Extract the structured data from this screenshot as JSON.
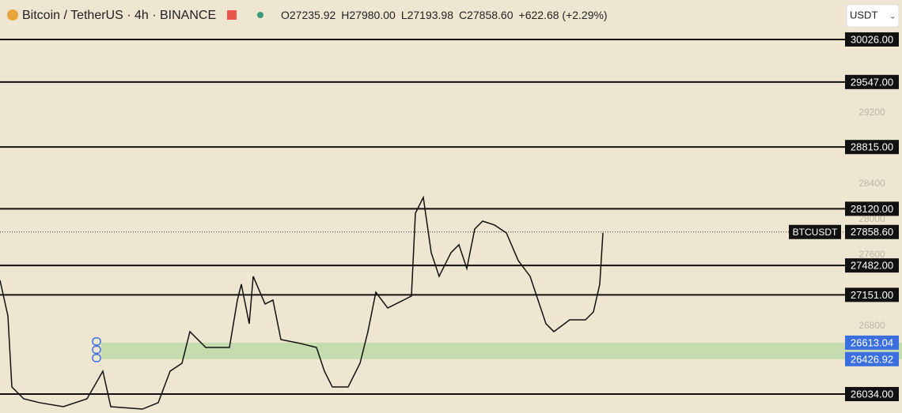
{
  "header": {
    "symbol": "Bitcoin / TetherUS · 4h · BINANCE",
    "ohlc": [
      "O27235.92",
      "H27980.00",
      "L27193.98",
      "C27858.60",
      "+622.68 (+2.29%)"
    ],
    "currency": "USDT"
  },
  "chart_data": {
    "type": "line",
    "x": [
      0,
      2,
      3,
      6,
      10,
      16,
      22,
      26,
      28,
      36,
      40,
      43,
      46,
      48,
      52,
      58,
      60,
      61,
      63,
      64,
      67,
      69,
      71,
      76,
      80,
      82,
      84,
      88,
      91,
      93,
      95,
      98,
      102,
      104,
      105,
      107,
      109,
      111,
      114,
      116,
      118,
      120,
      122,
      125,
      128,
      131,
      134,
      136,
      138,
      140,
      144,
      148,
      150,
      151.6,
      152.4
    ],
    "series": [
      {
        "name": "BTCUSDT",
        "color": "#111111",
        "values": [
          27315,
          26914,
          26114,
          25981,
          25937,
          25892,
          25981,
          26292,
          25892,
          25865,
          25937,
          26292,
          26381,
          26737,
          26559,
          26559,
          27092,
          27270,
          26826,
          27359,
          27048,
          27092,
          26648,
          26603,
          26559,
          26292,
          26114,
          26114,
          26381,
          26737,
          27181,
          27003,
          27092,
          27137,
          28070,
          28248,
          27626,
          27359,
          27626,
          27715,
          27448,
          27892,
          27981,
          27937,
          27848,
          27537,
          27359,
          27092,
          26826,
          26737,
          26870,
          26870,
          26959,
          27270,
          27848
        ],
        "last": 27858.6,
        "last_label": "27858.60"
      }
    ],
    "levels": [
      {
        "value": 30026,
        "label": "30026.00"
      },
      {
        "value": 29547,
        "label": "29547.00"
      },
      {
        "value": 28815,
        "label": "28815.00"
      },
      {
        "value": 28120,
        "label": "28120.00"
      },
      {
        "value": 27482,
        "label": "27482.00"
      },
      {
        "value": 27151,
        "label": "27151.00"
      },
      {
        "value": 26034,
        "label": "26034.00"
      }
    ],
    "zone": [
      26613.04,
      26426.92
    ],
    "zone_color": "#b9d9a5",
    "xlim": [
      0,
      212
    ],
    "ylim": [
      25821,
      30470
    ],
    "yticks": [
      26800,
      27600,
      28000,
      28400,
      29200
    ]
  }
}
